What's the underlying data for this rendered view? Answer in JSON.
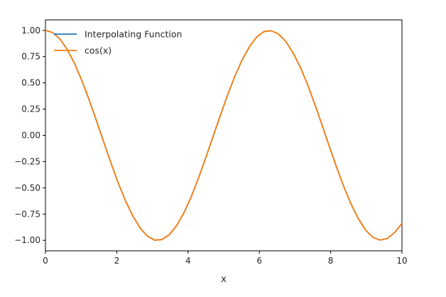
{
  "chart_data": {
    "type": "line",
    "title": "",
    "xlabel": "x",
    "ylabel": "",
    "xlim": [
      0,
      10
    ],
    "ylim": [
      -1.1,
      1.1
    ],
    "xticks": [
      0,
      2,
      4,
      6,
      8,
      10
    ],
    "xtick_labels": [
      "0",
      "2",
      "4",
      "6",
      "8",
      "10"
    ],
    "yticks": [
      1.0,
      0.75,
      0.5,
      0.25,
      0.0,
      -0.25,
      -0.5,
      -0.75,
      -1.0
    ],
    "ytick_labels": [
      "1.00",
      "0.75",
      "0.50",
      "0.25",
      "0.00",
      "−0.25",
      "−0.50",
      "−0.75",
      "−1.00"
    ],
    "grid": false,
    "legend_position": "upper-left",
    "x": [
      0.0,
      0.204,
      0.408,
      0.612,
      0.816,
      1.02,
      1.224,
      1.429,
      1.633,
      1.837,
      2.041,
      2.245,
      2.449,
      2.653,
      2.857,
      3.061,
      3.265,
      3.469,
      3.673,
      3.878,
      4.082,
      4.286,
      4.49,
      4.694,
      4.898,
      5.102,
      5.306,
      5.51,
      5.714,
      5.918,
      6.122,
      6.327,
      6.531,
      6.735,
      6.939,
      7.143,
      7.347,
      7.551,
      7.755,
      7.959,
      8.163,
      8.367,
      8.571,
      8.776,
      8.98,
      9.184,
      9.388,
      9.592,
      9.796,
      10.0
    ],
    "series": [
      {
        "name": "Interpolating Function",
        "color": "#1f77b4",
        "values": [
          1.0,
          0.979,
          0.918,
          0.818,
          0.685,
          0.523,
          0.34,
          0.141,
          -0.062,
          -0.263,
          -0.453,
          -0.623,
          -0.768,
          -0.881,
          -0.96,
          -0.998,
          -0.993,
          -0.948,
          -0.863,
          -0.742,
          -0.59,
          -0.413,
          -0.22,
          -0.018,
          0.183,
          0.378,
          0.558,
          0.714,
          0.841,
          0.934,
          0.988,
          0.997,
          0.967,
          0.898,
          0.79,
          0.654,
          0.488,
          0.301,
          0.102,
          -0.102,
          -0.301,
          -0.488,
          -0.654,
          -0.794,
          -0.902,
          -0.972,
          -0.998,
          -0.982,
          -0.925,
          -0.839
        ]
      },
      {
        "name": "cos(x)",
        "color": "#ff7f0e",
        "values": [
          1.0,
          0.979,
          0.918,
          0.818,
          0.685,
          0.523,
          0.34,
          0.141,
          -0.062,
          -0.263,
          -0.453,
          -0.623,
          -0.768,
          -0.881,
          -0.96,
          -0.998,
          -0.993,
          -0.948,
          -0.863,
          -0.742,
          -0.59,
          -0.413,
          -0.22,
          -0.018,
          0.183,
          0.378,
          0.558,
          0.714,
          0.841,
          0.934,
          0.988,
          0.997,
          0.967,
          0.898,
          0.79,
          0.654,
          0.488,
          0.301,
          0.102,
          -0.102,
          -0.301,
          -0.488,
          -0.654,
          -0.794,
          -0.902,
          -0.972,
          -0.998,
          -0.982,
          -0.925,
          -0.839
        ]
      }
    ]
  }
}
